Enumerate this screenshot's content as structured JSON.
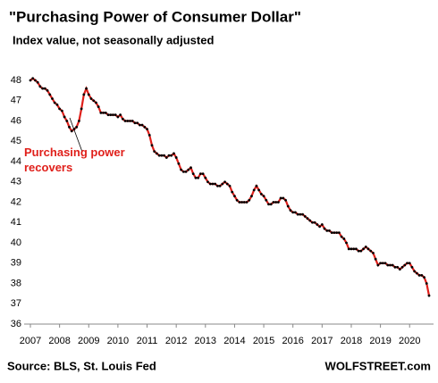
{
  "chart_data": {
    "type": "line",
    "title": "\"Purchasing  Power of Consumer Dollar\"",
    "subtitle": "Index value, not seasonally adjusted",
    "annotation": "Purchasing power recovers",
    "source": "Source: BLS, St. Louis Fed",
    "brand": "WOLFSTREET.com",
    "xlim": [
      2007,
      2020.667
    ],
    "ylim": [
      36,
      48
    ],
    "xticks": [
      2007,
      2008,
      2009,
      2010,
      2011,
      2012,
      2013,
      2014,
      2015,
      2016,
      2017,
      2018,
      2019,
      2020
    ],
    "yticks": [
      36,
      37,
      38,
      39,
      40,
      41,
      42,
      43,
      44,
      45,
      46,
      47,
      48
    ],
    "grid": false,
    "series": [
      {
        "color": "#e0201b",
        "marker_color": "#000000",
        "x": [
          2007,
          2007.083,
          2007.167,
          2007.25,
          2007.333,
          2007.417,
          2007.5,
          2007.583,
          2007.667,
          2007.75,
          2007.833,
          2007.917,
          2008,
          2008.083,
          2008.167,
          2008.25,
          2008.333,
          2008.417,
          2008.5,
          2008.583,
          2008.667,
          2008.75,
          2008.833,
          2008.917,
          2009,
          2009.083,
          2009.167,
          2009.25,
          2009.333,
          2009.417,
          2009.5,
          2009.583,
          2009.667,
          2009.75,
          2009.833,
          2009.917,
          2010,
          2010.083,
          2010.167,
          2010.25,
          2010.333,
          2010.417,
          2010.5,
          2010.583,
          2010.667,
          2010.75,
          2010.833,
          2010.917,
          2011,
          2011.083,
          2011.167,
          2011.25,
          2011.333,
          2011.417,
          2011.5,
          2011.583,
          2011.667,
          2011.75,
          2011.833,
          2011.917,
          2012,
          2012.083,
          2012.167,
          2012.25,
          2012.333,
          2012.417,
          2012.5,
          2012.583,
          2012.667,
          2012.75,
          2012.833,
          2012.917,
          2013,
          2013.083,
          2013.167,
          2013.25,
          2013.333,
          2013.417,
          2013.5,
          2013.583,
          2013.667,
          2013.75,
          2013.833,
          2013.917,
          2014,
          2014.083,
          2014.167,
          2014.25,
          2014.333,
          2014.417,
          2014.5,
          2014.583,
          2014.667,
          2014.75,
          2014.833,
          2014.917,
          2015,
          2015.083,
          2015.167,
          2015.25,
          2015.333,
          2015.417,
          2015.5,
          2015.583,
          2015.667,
          2015.75,
          2015.833,
          2015.917,
          2016,
          2016.083,
          2016.167,
          2016.25,
          2016.333,
          2016.417,
          2016.5,
          2016.583,
          2016.667,
          2016.75,
          2016.833,
          2016.917,
          2017,
          2017.083,
          2017.167,
          2017.25,
          2017.333,
          2017.417,
          2017.5,
          2017.583,
          2017.667,
          2017.75,
          2017.833,
          2017.917,
          2018,
          2018.083,
          2018.167,
          2018.25,
          2018.333,
          2018.417,
          2018.5,
          2018.583,
          2018.667,
          2018.75,
          2018.833,
          2018.917,
          2019,
          2019.083,
          2019.167,
          2019.25,
          2019.333,
          2019.417,
          2019.5,
          2019.583,
          2019.667,
          2019.75,
          2019.833,
          2019.917,
          2020,
          2020.083,
          2020.167,
          2020.25,
          2020.333,
          2020.417,
          2020.5,
          2020.583,
          2020.667
        ],
        "values": [
          48.0,
          48.1,
          48.0,
          47.9,
          47.7,
          47.6,
          47.6,
          47.5,
          47.3,
          47.1,
          46.9,
          46.8,
          46.6,
          46.5,
          46.2,
          46.0,
          45.7,
          45.5,
          45.6,
          45.7,
          46.0,
          46.6,
          47.3,
          47.6,
          47.3,
          47.1,
          47.0,
          46.9,
          46.7,
          46.4,
          46.4,
          46.4,
          46.3,
          46.3,
          46.3,
          46.3,
          46.2,
          46.3,
          46.1,
          46.0,
          46.0,
          46.0,
          46.0,
          45.9,
          45.9,
          45.8,
          45.8,
          45.7,
          45.6,
          45.3,
          44.8,
          44.5,
          44.4,
          44.3,
          44.3,
          44.3,
          44.2,
          44.3,
          44.3,
          44.4,
          44.2,
          43.9,
          43.6,
          43.5,
          43.5,
          43.6,
          43.7,
          43.4,
          43.2,
          43.2,
          43.4,
          43.4,
          43.2,
          43.0,
          42.9,
          42.9,
          42.9,
          42.8,
          42.8,
          42.9,
          43.0,
          42.9,
          42.8,
          42.5,
          42.3,
          42.1,
          42.0,
          42.0,
          42.0,
          42.0,
          42.1,
          42.3,
          42.6,
          42.8,
          42.6,
          42.4,
          42.3,
          42.1,
          41.9,
          41.9,
          42.0,
          42.0,
          42.0,
          42.2,
          42.2,
          42.1,
          41.8,
          41.6,
          41.5,
          41.5,
          41.4,
          41.4,
          41.4,
          41.3,
          41.2,
          41.1,
          41.0,
          41.0,
          40.9,
          40.8,
          40.9,
          40.7,
          40.6,
          40.6,
          40.5,
          40.5,
          40.5,
          40.5,
          40.3,
          40.2,
          40.0,
          39.7,
          39.7,
          39.7,
          39.7,
          39.6,
          39.6,
          39.7,
          39.8,
          39.7,
          39.6,
          39.5,
          39.2,
          38.9,
          39.0,
          39.0,
          39.0,
          38.9,
          38.9,
          38.9,
          38.8,
          38.8,
          38.7,
          38.8,
          38.9,
          39.0,
          39.0,
          38.8,
          38.6,
          38.5,
          38.4,
          38.4,
          38.3,
          38.0,
          37.4
        ]
      }
    ]
  }
}
